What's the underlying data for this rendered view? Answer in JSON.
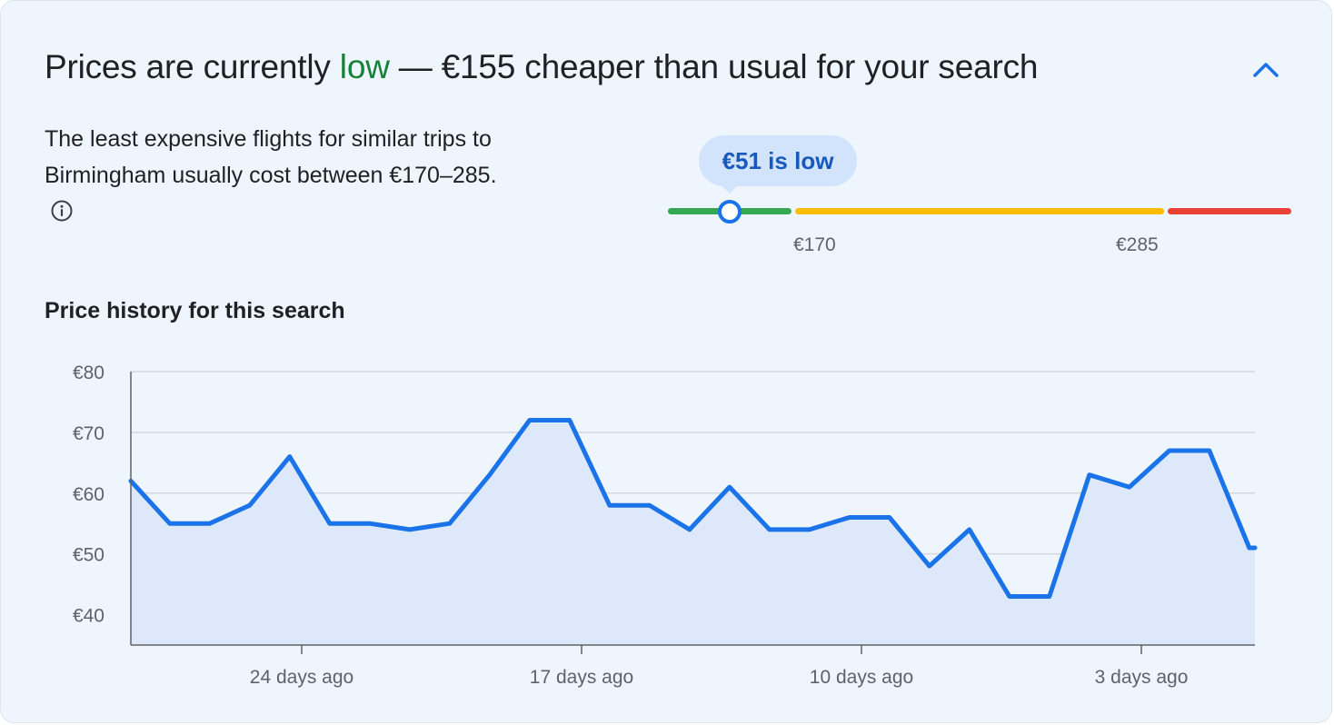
{
  "header": {
    "title_prefix": "Prices are currently ",
    "title_highlight": "low",
    "title_suffix": " — €155 cheaper than usual for your search",
    "collapse_icon": "chevron-up-icon"
  },
  "summary": {
    "description": "The least expensive flights for similar trips to Birmingham usually cost between €170–285.",
    "info_icon": "info-icon"
  },
  "price_indicator": {
    "current_label": "€51 is low",
    "current_value": 51,
    "range_low_label": "€170",
    "range_high_label": "€285",
    "colors": {
      "low": "#34a853",
      "typical": "#fbbc04",
      "high": "#ea4335",
      "marker": "#1a73e8"
    }
  },
  "history": {
    "subtitle": "Price history for this search"
  },
  "chart_data": {
    "type": "area",
    "title": "",
    "xlabel": "",
    "ylabel": "",
    "ylim": [
      35,
      80
    ],
    "y_ticks": [
      80,
      70,
      60,
      50,
      40
    ],
    "y_tick_labels": [
      "€80",
      "€70",
      "€60",
      "€50",
      "€40"
    ],
    "x_ticks": [
      24,
      17,
      10,
      3
    ],
    "x_tick_labels": [
      "24 days ago",
      "17 days ago",
      "10 days ago",
      "3 days ago"
    ],
    "grid": true,
    "line_color": "#1a73e8",
    "fill_color": "#dde9fb",
    "series": [
      {
        "x": [
          28.3,
          27.3,
          26.3,
          25.3,
          24.3,
          23.3,
          22.3,
          21.3,
          20.3,
          19.3,
          18.3,
          17.3,
          16.3,
          15.3,
          14.3,
          13.3,
          12.3,
          11.3,
          10.3,
          9.3,
          8.3,
          7.3,
          6.3,
          5.3,
          4.3,
          3.3,
          2.3,
          1.3,
          0.3,
          -0.7
        ],
        "y": [
          62,
          55,
          55,
          58,
          66,
          55,
          55,
          54,
          55,
          63,
          72,
          72,
          58,
          58,
          54,
          61,
          54,
          54,
          56,
          56,
          48,
          54,
          43,
          43,
          63,
          61,
          67,
          67,
          51,
          51
        ]
      }
    ]
  }
}
